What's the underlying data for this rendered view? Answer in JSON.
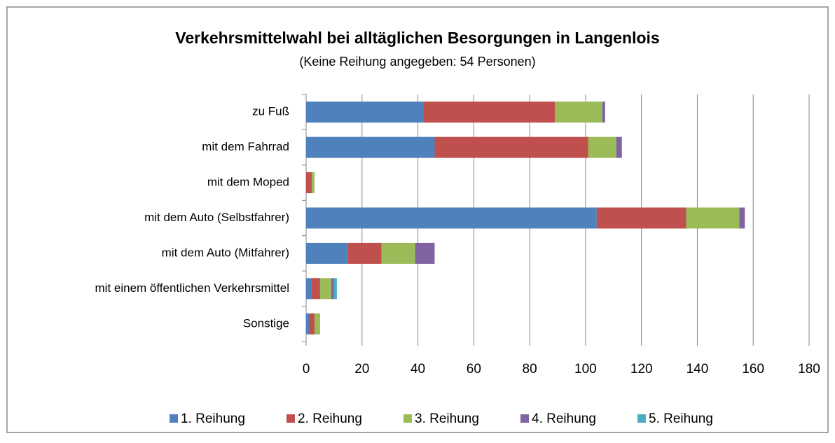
{
  "chart_data": {
    "type": "stacked_bar_horizontal",
    "title": "Verkehrsmittelwahl bei alltäglichen Besorgungen in Langenlois",
    "subtitle": "(Keine Reihung angegeben: 54 Personen)",
    "categories": [
      "zu Fuß",
      "mit dem Fahrrad",
      "mit dem Moped",
      "mit dem Auto (Selbstfahrer)",
      "mit dem Auto (Mitfahrer)",
      "mit einem öffentlichen Verkehrsmittel",
      "Sonstige"
    ],
    "series": [
      {
        "name": "1. Reihung",
        "color": "#4f81bd",
        "values": [
          42,
          46,
          0,
          104,
          15,
          2,
          1
        ]
      },
      {
        "name": "2. Reihung",
        "color": "#c0504d",
        "values": [
          47,
          55,
          2,
          32,
          12,
          3,
          2
        ]
      },
      {
        "name": "3. Reihung",
        "color": "#9bbb59",
        "values": [
          17,
          10,
          1,
          19,
          12,
          4,
          2
        ]
      },
      {
        "name": "4. Reihung",
        "color": "#8064a2",
        "values": [
          1,
          2,
          0,
          2,
          7,
          1,
          0
        ]
      },
      {
        "name": "5. Reihung",
        "color": "#4bacc6",
        "values": [
          0,
          0,
          0,
          0,
          0,
          1,
          0
        ]
      }
    ],
    "xlim": [
      0,
      180
    ],
    "xticks": [
      0,
      20,
      40,
      60,
      80,
      100,
      120,
      140,
      160,
      180
    ],
    "grid": true,
    "legend": "bottom"
  }
}
